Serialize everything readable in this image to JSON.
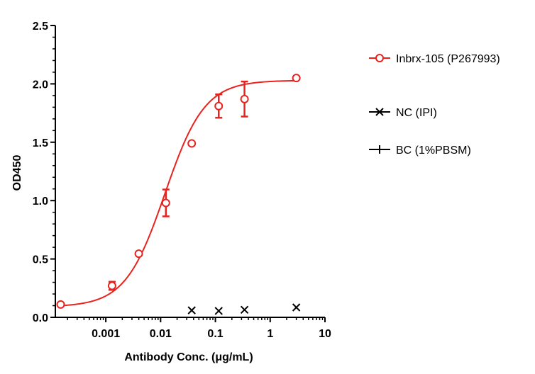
{
  "colors": {
    "primary": "#e8231f",
    "axis": "#000000",
    "control": "#000000"
  },
  "chart_data": {
    "type": "scatter",
    "xlabel": "Antibody Conc. (μg/mL)",
    "ylabel": "OD450",
    "xscale": "log",
    "xlim": [
      0.00012,
      10
    ],
    "ylim": [
      0,
      2.5
    ],
    "x_ticks": [
      {
        "value": 0.001,
        "label": "0.001"
      },
      {
        "value": 0.01,
        "label": "0.01"
      },
      {
        "value": 0.1,
        "label": "0.1"
      },
      {
        "value": 1,
        "label": "1"
      },
      {
        "value": 10,
        "label": "10"
      }
    ],
    "y_ticks": [
      {
        "value": 0,
        "label": "0.0"
      },
      {
        "value": 0.5,
        "label": "0.5"
      },
      {
        "value": 1.0,
        "label": "1.0"
      },
      {
        "value": 1.5,
        "label": "1.5"
      },
      {
        "value": 2.0,
        "label": "2.0"
      },
      {
        "value": 2.5,
        "label": "2.5"
      }
    ],
    "legend_position": "right",
    "series": [
      {
        "name": "Inbrx-105 (P267993)",
        "marker": "circle",
        "color": "#e8231f",
        "fit": "4PL",
        "fit_params": {
          "bottom": 0.09,
          "top": 2.03,
          "ec50": 0.012,
          "hill": 1.2
        },
        "points": [
          {
            "x": 0.00015,
            "y": 0.11,
            "err": 0
          },
          {
            "x": 0.0013,
            "y": 0.27,
            "err": 0.035
          },
          {
            "x": 0.004,
            "y": 0.545,
            "err": 0
          },
          {
            "x": 0.0125,
            "y": 0.98,
            "err": 0.115
          },
          {
            "x": 0.037,
            "y": 1.49,
            "err": 0
          },
          {
            "x": 0.115,
            "y": 1.81,
            "err": 0.1
          },
          {
            "x": 0.34,
            "y": 1.87,
            "err": 0.15
          },
          {
            "x": 3.0,
            "y": 2.05,
            "err": 0
          }
        ]
      },
      {
        "name": "NC (IPI)",
        "marker": "x",
        "color": "#000000",
        "points": [
          {
            "x": 0.037,
            "y": 0.06
          },
          {
            "x": 0.115,
            "y": 0.055
          },
          {
            "x": 0.34,
            "y": 0.065
          },
          {
            "x": 3.0,
            "y": 0.085
          }
        ]
      },
      {
        "name": "BC (1%PBSM)",
        "marker": "plus",
        "color": "#000000",
        "points": []
      }
    ]
  }
}
